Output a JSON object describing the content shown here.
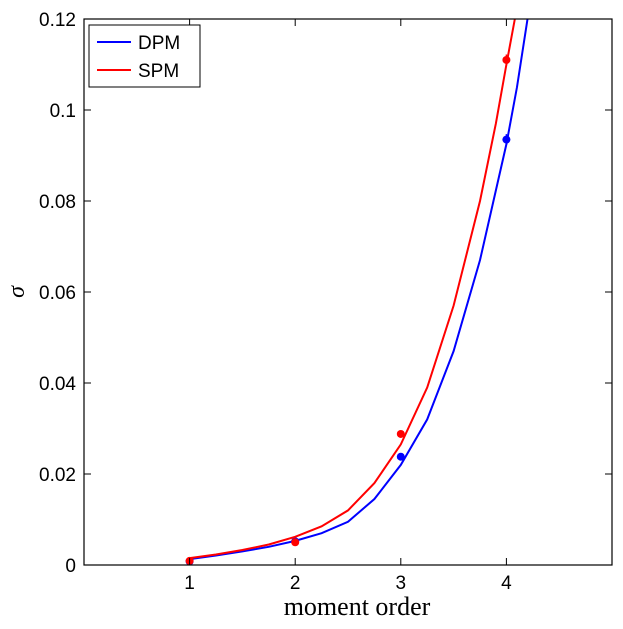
{
  "chart_data": {
    "type": "line",
    "xlabel": "moment order",
    "ylabel": "σ",
    "xlim": [
      0,
      5
    ],
    "ylim": [
      0,
      0.12
    ],
    "x_ticks": [
      1,
      2,
      3,
      4
    ],
    "x_tick_labels": [
      "1",
      "2",
      "3",
      "4"
    ],
    "y_ticks": [
      0,
      0.02,
      0.04,
      0.06,
      0.08,
      0.1,
      0.12
    ],
    "y_tick_labels": [
      "0",
      "0.02",
      "0.04",
      "0.06",
      "0.08",
      "0.1",
      "0.12"
    ],
    "grid": false,
    "legend_position": "top-left",
    "series": [
      {
        "name": "DPM",
        "color": "#0000ff",
        "points": [
          {
            "x": 1,
            "y": 0.0008,
            "err": 0.0003
          },
          {
            "x": 2,
            "y": 0.0052,
            "err": 0.0003
          },
          {
            "x": 3,
            "y": 0.0238,
            "err": 0.0005
          },
          {
            "x": 4,
            "y": 0.0935,
            "err": 0.0012
          }
        ],
        "curve": [
          {
            "x": 1.0,
            "y": 0.0013
          },
          {
            "x": 1.25,
            "y": 0.0021
          },
          {
            "x": 1.5,
            "y": 0.003
          },
          {
            "x": 1.75,
            "y": 0.004
          },
          {
            "x": 2.0,
            "y": 0.0053
          },
          {
            "x": 2.25,
            "y": 0.007
          },
          {
            "x": 2.5,
            "y": 0.0095
          },
          {
            "x": 2.75,
            "y": 0.0145
          },
          {
            "x": 3.0,
            "y": 0.022
          },
          {
            "x": 3.25,
            "y": 0.032
          },
          {
            "x": 3.5,
            "y": 0.047
          },
          {
            "x": 3.75,
            "y": 0.067
          },
          {
            "x": 4.0,
            "y": 0.0925
          },
          {
            "x": 4.1,
            "y": 0.105
          },
          {
            "x": 4.2,
            "y": 0.12
          }
        ]
      },
      {
        "name": "SPM",
        "color": "#ff0000",
        "points": [
          {
            "x": 1,
            "y": 0.0009,
            "err": 0.0003
          },
          {
            "x": 2,
            "y": 0.005,
            "err": 0.0003
          },
          {
            "x": 3,
            "y": 0.0288,
            "err": 0.0005
          },
          {
            "x": 4,
            "y": 0.111,
            "err": 0.0012
          }
        ],
        "curve": [
          {
            "x": 1.0,
            "y": 0.0015
          },
          {
            "x": 1.25,
            "y": 0.0023
          },
          {
            "x": 1.5,
            "y": 0.0033
          },
          {
            "x": 1.75,
            "y": 0.0045
          },
          {
            "x": 2.0,
            "y": 0.0062
          },
          {
            "x": 2.25,
            "y": 0.0085
          },
          {
            "x": 2.5,
            "y": 0.012
          },
          {
            "x": 2.75,
            "y": 0.018
          },
          {
            "x": 3.0,
            "y": 0.0265
          },
          {
            "x": 3.25,
            "y": 0.039
          },
          {
            "x": 3.5,
            "y": 0.057
          },
          {
            "x": 3.75,
            "y": 0.08
          },
          {
            "x": 3.9,
            "y": 0.097
          },
          {
            "x": 4.0,
            "y": 0.11
          },
          {
            "x": 4.08,
            "y": 0.12
          }
        ]
      }
    ]
  }
}
